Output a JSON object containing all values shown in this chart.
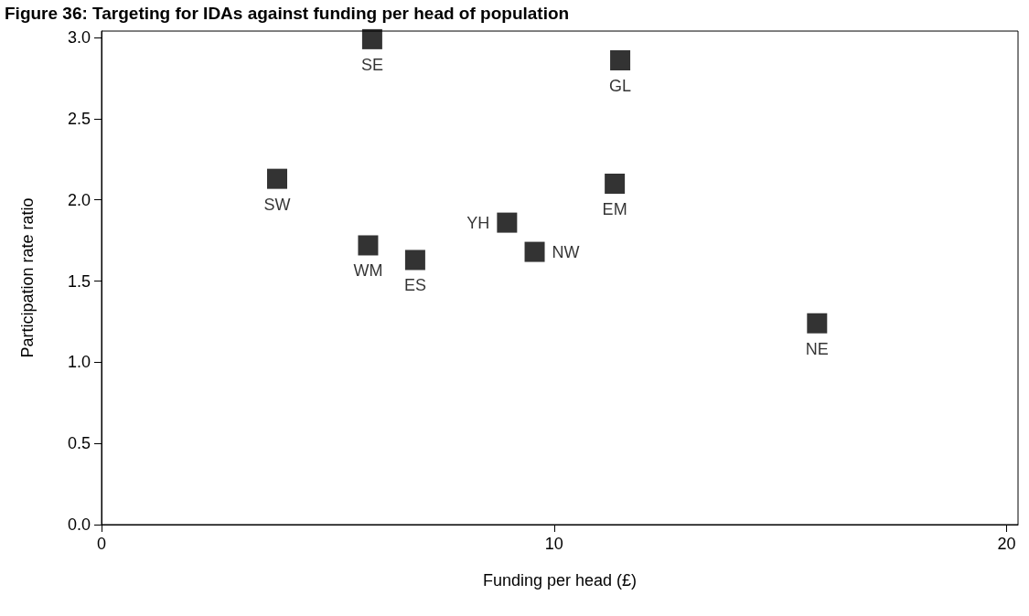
{
  "chart_data": {
    "type": "scatter",
    "title": "Figure 36: Targeting for IDAs against funding per head of population",
    "xlabel": "Funding per head (£)",
    "ylabel": "Participation rate ratio",
    "x": [
      5.98,
      11.46,
      3.88,
      11.34,
      8.96,
      5.89,
      6.93,
      9.57,
      15.81
    ],
    "values": [
      2.99,
      2.86,
      2.13,
      2.1,
      1.86,
      1.72,
      1.63,
      1.68,
      1.24
    ],
    "value_labels": [
      "SE",
      "GL",
      "SW",
      "EM",
      "YH",
      "WM",
      "ES",
      "NW",
      "NE"
    ],
    "color": "#000000",
    "marker": "square",
    "xlim": [
      0,
      20.25
    ],
    "xticks": [
      0,
      10,
      20
    ],
    "ylim": [
      0,
      3.04
    ],
    "yticks": [
      {
        "value": 0,
        "label": "0.0"
      },
      {
        "value": 0.5,
        "label": "0.5"
      },
      {
        "value": 1,
        "label": "1.0"
      },
      {
        "value": 1.5,
        "label": "1.5"
      },
      {
        "value": 2,
        "label": "2.0"
      },
      {
        "value": 2.5,
        "label": "2.5"
      },
      {
        "value": 3,
        "label": "3.0"
      }
    ],
    "grid": false
  }
}
